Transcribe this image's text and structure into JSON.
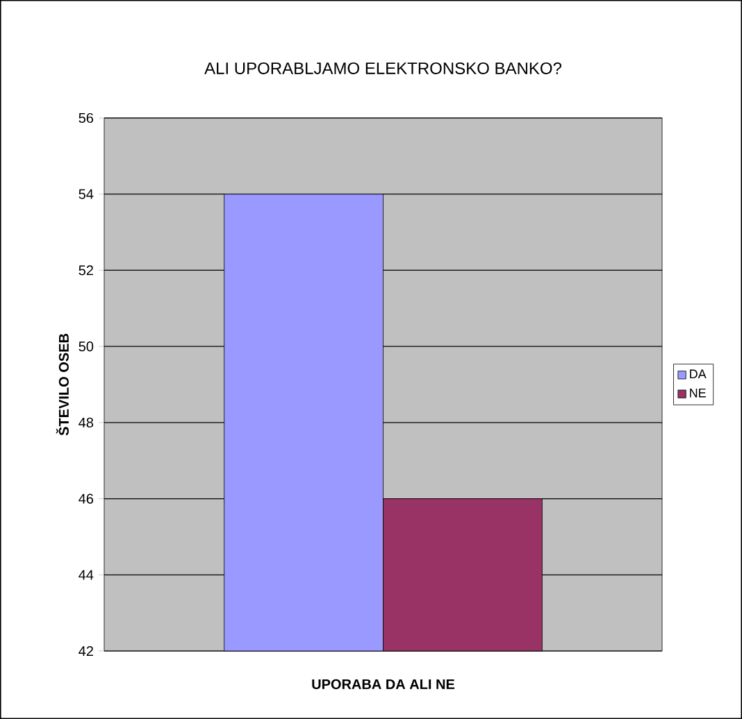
{
  "chart_data": {
    "type": "bar",
    "title": "ALI UPORABLJAMO ELEKTRONSKO BANKO?",
    "xlabel": "UPORABA DA ALI NE",
    "ylabel": "ŠTEVILO OSEB",
    "categories": [
      null
    ],
    "series": [
      {
        "name": "DA",
        "color": "#9999ff",
        "values": [
          54
        ]
      },
      {
        "name": "NE",
        "color": "#993366",
        "values": [
          46
        ]
      }
    ],
    "ylim": [
      42,
      56
    ],
    "yticks": [
      42,
      44,
      46,
      48,
      50,
      52,
      54,
      56
    ],
    "grid": "y",
    "legend": "right"
  }
}
